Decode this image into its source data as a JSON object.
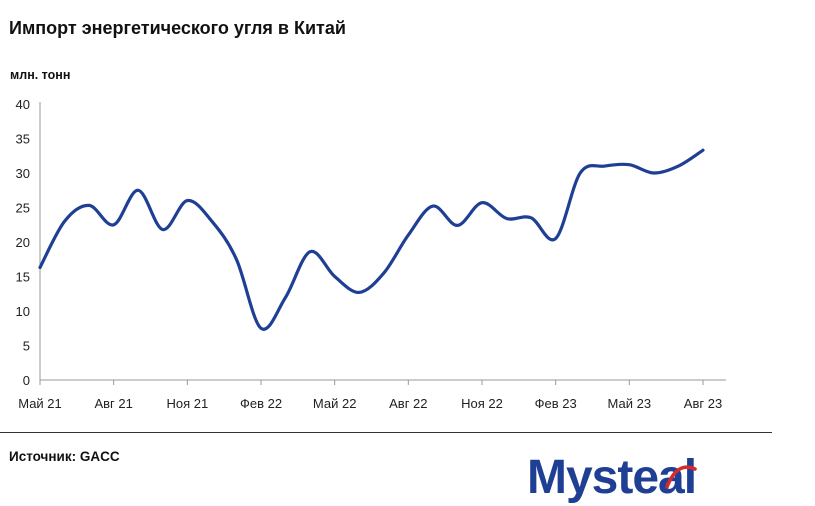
{
  "title": "Импорт энергетического угля в Китай",
  "unit": "млн. тонн",
  "source": "Источник: GACC",
  "logo": {
    "text": "Mysteal",
    "color": "#1f3f94",
    "accent": "#d52a2a"
  },
  "chart_data": {
    "type": "line",
    "ylim": [
      0,
      40
    ],
    "yticks": [
      0,
      5,
      10,
      15,
      20,
      25,
      30,
      35,
      40
    ],
    "xticklabels": [
      "Май 21",
      "Авг 21",
      "Ноя 21",
      "Фев 22",
      "Май 22",
      "Авг 22",
      "Ноя 22",
      "Фев 23",
      "Май 23",
      "Авг 23"
    ],
    "grid": false,
    "line_color": "#1f3f94",
    "series": [
      {
        "x": [
          "2021-05",
          "2021-06",
          "2021-07",
          "2021-08",
          "2021-09",
          "2021-10",
          "2021-11",
          "2021-12",
          "2022-01",
          "2022-02",
          "2022-03",
          "2022-04",
          "2022-05",
          "2022-06",
          "2022-07",
          "2022-08",
          "2022-09",
          "2022-10",
          "2022-11",
          "2022-12",
          "2023-01",
          "2023-02",
          "2023-03",
          "2023-04",
          "2023-05",
          "2023-06",
          "2023-07",
          "2023-08"
        ],
        "values": [
          16.3,
          23.0,
          25.3,
          22.5,
          27.5,
          21.8,
          26.0,
          23.0,
          17.5,
          7.5,
          12.0,
          18.6,
          15.0,
          12.7,
          15.5,
          21.0,
          25.2,
          22.4,
          25.7,
          23.4,
          23.5,
          20.5,
          30.0,
          31.0,
          31.2,
          30.0,
          31.0,
          33.3
        ]
      }
    ]
  }
}
